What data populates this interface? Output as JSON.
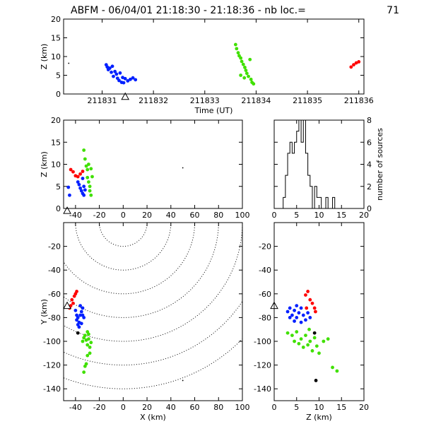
{
  "header": {
    "title": "ABFM - 06/04/01 21:18:30 - 21:18:36 - nb loc.=",
    "count": "71"
  },
  "colors": {
    "blue": "#0020ff",
    "green": "#40e000",
    "red": "#ff0000",
    "black": "#000000"
  },
  "chart_data": [
    {
      "id": "time-height",
      "type": "scatter",
      "xlabel": "Time (UT)",
      "ylabel": "Z (km)",
      "xlim": [
        211830.25,
        211836.1
      ],
      "ylim": [
        0,
        20
      ],
      "x_ticks": [
        211831,
        211832,
        211833,
        211834,
        211835,
        211836
      ],
      "x_tick_labels": [
        "211831",
        "211832",
        "211833",
        "211834",
        "211835",
        "211836"
      ],
      "y_ticks": [
        0,
        5,
        10,
        15,
        20
      ],
      "station_marker": {
        "x": 211831.45,
        "y": -0.7
      },
      "series": [
        {
          "color": "black",
          "points": [
            [
              211830.35,
              8.2
            ]
          ]
        },
        {
          "color": "blue",
          "points": [
            [
              211831.08,
              7.8
            ],
            [
              211831.1,
              7.2
            ],
            [
              211831.12,
              6.5
            ],
            [
              211831.15,
              6.9
            ],
            [
              211831.18,
              5.8
            ],
            [
              211831.2,
              7.4
            ],
            [
              211831.22,
              4.7
            ],
            [
              211831.25,
              6.0
            ],
            [
              211831.28,
              5.3
            ],
            [
              211831.3,
              4.2
            ],
            [
              211831.33,
              3.6
            ],
            [
              211831.35,
              5.6
            ],
            [
              211831.38,
              3.1
            ],
            [
              211831.4,
              4.4
            ],
            [
              211831.42,
              3.0
            ],
            [
              211831.45,
              4.1
            ],
            [
              211831.5,
              3.5
            ],
            [
              211831.55,
              3.9
            ],
            [
              211831.6,
              4.3
            ],
            [
              211831.65,
              3.8
            ]
          ]
        },
        {
          "color": "green",
          "points": [
            [
              211833.6,
              13.2
            ],
            [
              211833.62,
              12.1
            ],
            [
              211833.65,
              11.0
            ],
            [
              211833.67,
              10.2
            ],
            [
              211833.7,
              9.6
            ],
            [
              211833.72,
              8.7
            ],
            [
              211833.75,
              7.9
            ],
            [
              211833.78,
              7.1
            ],
            [
              211833.8,
              6.3
            ],
            [
              211833.82,
              5.5
            ],
            [
              211833.85,
              4.7
            ],
            [
              211833.88,
              9.2
            ],
            [
              211833.9,
              3.9
            ],
            [
              211833.92,
              3.1
            ],
            [
              211833.95,
              2.7
            ],
            [
              211833.7,
              5.0
            ],
            [
              211833.77,
              4.3
            ]
          ]
        },
        {
          "color": "red",
          "points": [
            [
              211835.85,
              7.2
            ],
            [
              211835.9,
              7.8
            ],
            [
              211835.95,
              8.3
            ],
            [
              211836.0,
              8.6
            ]
          ]
        }
      ]
    },
    {
      "id": "x-z",
      "type": "scatter",
      "xlabel": "",
      "ylabel": "Z (km)",
      "xlim": [
        -50,
        100
      ],
      "ylim": [
        0,
        20
      ],
      "x_ticks": [
        -40,
        -20,
        0,
        20,
        40,
        60,
        80,
        100
      ],
      "y_ticks": [
        0,
        5,
        10,
        15,
        20
      ],
      "station_marker": {
        "x": -47,
        "y": -0.5
      },
      "series": [
        {
          "color": "red",
          "points": [
            [
              -44,
              8.8
            ],
            [
              -42,
              8.3
            ],
            [
              -40,
              7.4
            ],
            [
              -38,
              7.2
            ],
            [
              -36,
              7.8
            ],
            [
              -34,
              8.4
            ]
          ]
        },
        {
          "color": "blue",
          "points": [
            [
              -46,
              4.8
            ],
            [
              -45,
              3.0
            ],
            [
              -38,
              6.0
            ],
            [
              -37,
              5.4
            ],
            [
              -36,
              4.6
            ],
            [
              -35,
              4.0
            ],
            [
              -34,
              6.8
            ],
            [
              -34,
              3.4
            ],
            [
              -33,
              5.0
            ],
            [
              -33,
              3.0
            ],
            [
              -32,
              4.2
            ]
          ]
        },
        {
          "color": "green",
          "points": [
            [
              -33,
              13.2
            ],
            [
              -32,
              11.2
            ],
            [
              -31,
              9.6
            ],
            [
              -30,
              8.8
            ],
            [
              -30,
              7.0
            ],
            [
              -29,
              6.0
            ],
            [
              -29,
              10.0
            ],
            [
              -28,
              5.0
            ],
            [
              -28,
              4.0
            ],
            [
              -27,
              9.0
            ],
            [
              -27,
              3.0
            ],
            [
              -26,
              7.2
            ]
          ]
        },
        {
          "color": "black",
          "points": [
            [
              50,
              9.2
            ]
          ]
        }
      ]
    },
    {
      "id": "histogram",
      "type": "bar",
      "ylabel": "number of sources",
      "xlim": [
        0,
        20
      ],
      "ylim": [
        0,
        8
      ],
      "x_ticks": [
        0,
        5,
        10,
        15,
        20
      ],
      "y_ticks": [
        0,
        2,
        4,
        6,
        8
      ],
      "bin_edges": [
        2,
        2.5,
        3,
        3.5,
        4,
        4.5,
        5,
        5.5,
        6,
        6.5,
        7,
        7.5,
        8,
        8.5,
        9,
        9.5,
        10,
        10.5,
        11,
        11.5,
        12,
        12.5,
        13,
        13.5,
        14
      ],
      "values": [
        1,
        3,
        5,
        6,
        5,
        6,
        7,
        8,
        6,
        8,
        5,
        3,
        2,
        0,
        2,
        1,
        1,
        0,
        0,
        1,
        0,
        0,
        1,
        0
      ]
    },
    {
      "id": "x-y",
      "type": "scatter",
      "xlabel": "X (km)",
      "ylabel": "Y (km)",
      "xlim": [
        -50,
        100
      ],
      "ylim": [
        -150,
        0
      ],
      "x_ticks": [
        -40,
        -20,
        0,
        20,
        40,
        60,
        80,
        100
      ],
      "y_ticks": [
        -140,
        -120,
        -100,
        -80,
        -60,
        -40,
        -20
      ],
      "station_marker": {
        "x": -47,
        "y": -70
      },
      "range_rings_km": [
        20,
        40,
        60,
        80,
        100,
        120,
        140
      ],
      "range_center": [
        0,
        0
      ],
      "series": [
        {
          "color": "red",
          "points": [
            [
              -44,
              -70
            ],
            [
              -43,
              -65
            ],
            [
              -42,
              -68
            ],
            [
              -41,
              -62
            ],
            [
              -40,
              -60
            ],
            [
              -39,
              -58
            ],
            [
              -45,
              -72
            ]
          ]
        },
        {
          "color": "blue",
          "points": [
            [
              -40,
              -74
            ],
            [
              -39,
              -78
            ],
            [
              -38,
              -80
            ],
            [
              -37,
              -84
            ],
            [
              -36,
              -78
            ],
            [
              -35,
              -75
            ],
            [
              -34,
              -72
            ],
            [
              -33,
              -80
            ],
            [
              -38,
              -86
            ],
            [
              -37,
              -88
            ],
            [
              -35,
              -85
            ],
            [
              -39,
              -82
            ],
            [
              -36,
              -70
            ],
            [
              -34,
              -78
            ]
          ]
        },
        {
          "color": "green",
          "points": [
            [
              -34,
              -100
            ],
            [
              -33,
              -97
            ],
            [
              -32,
              -95
            ],
            [
              -31,
              -99
            ],
            [
              -30,
              -103
            ],
            [
              -29,
              -98
            ],
            [
              -28,
              -105
            ],
            [
              -27,
              -101
            ],
            [
              -28,
              -110
            ],
            [
              -30,
              -112
            ],
            [
              -32,
              -121
            ],
            [
              -31,
              -119
            ],
            [
              -33,
              -126
            ],
            [
              -29,
              -94
            ],
            [
              -30,
              -92
            ]
          ]
        },
        {
          "color": "black",
          "points": [
            [
              -38,
              -93
            ],
            [
              50,
              -133
            ]
          ]
        }
      ]
    },
    {
      "id": "z-y",
      "type": "scatter",
      "xlabel": "Z (km)",
      "ylabel": "",
      "xlim": [
        0,
        20
      ],
      "ylim": [
        -150,
        0
      ],
      "x_ticks": [
        0,
        5,
        10,
        15,
        20
      ],
      "y_ticks": [
        -140,
        -120,
        -100,
        -80,
        -60,
        -40,
        -20
      ],
      "station_marker": {
        "x": 0,
        "y": -70
      },
      "series": [
        {
          "color": "red",
          "points": [
            [
              7,
              -61
            ],
            [
              7.5,
              -58
            ],
            [
              8,
              -65
            ],
            [
              8.5,
              -68
            ],
            [
              9,
              -72
            ],
            [
              9.2,
              -75
            ],
            [
              7.2,
              -72
            ]
          ]
        },
        {
          "color": "blue",
          "points": [
            [
              3,
              -75
            ],
            [
              3.5,
              -72
            ],
            [
              4,
              -78
            ],
            [
              4.5,
              -74
            ],
            [
              5,
              -80
            ],
            [
              5.5,
              -76
            ],
            [
              6,
              -72
            ],
            [
              6.5,
              -78
            ],
            [
              7,
              -82
            ],
            [
              7.5,
              -76
            ],
            [
              8,
              -80
            ],
            [
              3.5,
              -80
            ],
            [
              4.5,
              -83
            ],
            [
              6,
              -84
            ],
            [
              5,
              -70
            ]
          ]
        },
        {
          "color": "green",
          "points": [
            [
              3,
              -93
            ],
            [
              4,
              -95
            ],
            [
              5,
              -92
            ],
            [
              6,
              -98
            ],
            [
              7,
              -95
            ],
            [
              8,
              -100
            ],
            [
              9,
              -97
            ],
            [
              5.5,
              -102
            ],
            [
              6.5,
              -105
            ],
            [
              7.5,
              -103
            ],
            [
              8.5,
              -108
            ],
            [
              10,
              -110
            ],
            [
              11,
              -100
            ],
            [
              12,
              -98
            ],
            [
              4.5,
              -100
            ],
            [
              9.5,
              -104
            ],
            [
              13,
              -122
            ],
            [
              14,
              -125
            ],
            [
              7.8,
              -90
            ]
          ]
        },
        {
          "color": "black",
          "points": [
            [
              9,
              -93
            ],
            [
              9.3,
              -133
            ]
          ]
        }
      ]
    }
  ]
}
